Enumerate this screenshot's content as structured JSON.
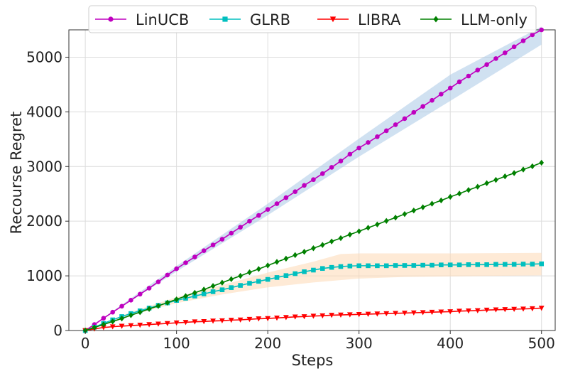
{
  "chart_data": {
    "type": "line",
    "title": "",
    "xlabel": "Steps",
    "ylabel": "Recourse Regret",
    "xlim": [
      -18,
      515
    ],
    "ylim": [
      0,
      5500
    ],
    "xticks": [
      0,
      100,
      200,
      300,
      400,
      500
    ],
    "yticks": [
      0,
      1000,
      2000,
      3000,
      4000,
      5000
    ],
    "grid": true,
    "legend_position": "top-center",
    "legend_columns": 4,
    "series": [
      {
        "name": "LinUCB",
        "color": "#bf00bf",
        "marker": "circle",
        "points": [
          [
            0,
            0
          ],
          [
            10,
            110
          ],
          [
            20,
            225
          ],
          [
            30,
            335
          ],
          [
            40,
            445
          ],
          [
            50,
            555
          ],
          [
            60,
            665
          ],
          [
            70,
            775
          ],
          [
            80,
            890
          ],
          [
            90,
            1015
          ],
          [
            100,
            1130
          ],
          [
            110,
            1240
          ],
          [
            120,
            1345
          ],
          [
            130,
            1460
          ],
          [
            140,
            1565
          ],
          [
            150,
            1670
          ],
          [
            160,
            1780
          ],
          [
            170,
            1890
          ],
          [
            180,
            2000
          ],
          [
            190,
            2105
          ],
          [
            200,
            2215
          ],
          [
            210,
            2320
          ],
          [
            220,
            2430
          ],
          [
            230,
            2540
          ],
          [
            240,
            2655
          ],
          [
            250,
            2760
          ],
          [
            260,
            2870
          ],
          [
            270,
            2985
          ],
          [
            280,
            3100
          ],
          [
            290,
            3225
          ],
          [
            300,
            3340
          ],
          [
            310,
            3440
          ],
          [
            320,
            3545
          ],
          [
            330,
            3655
          ],
          [
            340,
            3765
          ],
          [
            350,
            3875
          ],
          [
            360,
            3990
          ],
          [
            370,
            4100
          ],
          [
            380,
            4210
          ],
          [
            390,
            4325
          ],
          [
            400,
            4435
          ],
          [
            410,
            4550
          ],
          [
            420,
            4655
          ],
          [
            430,
            4765
          ],
          [
            440,
            4865
          ],
          [
            450,
            4975
          ],
          [
            460,
            5080
          ],
          [
            470,
            5190
          ],
          [
            480,
            5300
          ],
          [
            490,
            5410
          ],
          [
            500,
            5500
          ]
        ],
        "band": {
          "color": "#a9c9e6",
          "lower": [
            [
              0,
              0
            ],
            [
              100,
              1080
            ],
            [
              200,
              2110
            ],
            [
              300,
              3180
            ],
            [
              400,
              4200
            ],
            [
              500,
              5230
            ]
          ],
          "upper": [
            [
              0,
              0
            ],
            [
              100,
              1180
            ],
            [
              200,
              2320
            ],
            [
              300,
              3510
            ],
            [
              400,
              4680
            ],
            [
              500,
              5560
            ]
          ]
        }
      },
      {
        "name": "GLRB",
        "color": "#00bfbf",
        "marker": "square",
        "points": [
          [
            0,
            0
          ],
          [
            10,
            60
          ],
          [
            20,
            130
          ],
          [
            30,
            195
          ],
          [
            40,
            255
          ],
          [
            50,
            310
          ],
          [
            60,
            360
          ],
          [
            70,
            410
          ],
          [
            80,
            460
          ],
          [
            90,
            505
          ],
          [
            100,
            550
          ],
          [
            110,
            590
          ],
          [
            120,
            630
          ],
          [
            130,
            670
          ],
          [
            140,
            710
          ],
          [
            150,
            745
          ],
          [
            160,
            785
          ],
          [
            170,
            825
          ],
          [
            180,
            865
          ],
          [
            190,
            900
          ],
          [
            200,
            935
          ],
          [
            210,
            970
          ],
          [
            220,
            1005
          ],
          [
            230,
            1040
          ],
          [
            240,
            1075
          ],
          [
            250,
            1105
          ],
          [
            260,
            1135
          ],
          [
            270,
            1155
          ],
          [
            280,
            1170
          ],
          [
            290,
            1180
          ],
          [
            300,
            1185
          ],
          [
            310,
            1185
          ],
          [
            320,
            1185
          ],
          [
            330,
            1185
          ],
          [
            340,
            1190
          ],
          [
            350,
            1190
          ],
          [
            360,
            1190
          ],
          [
            370,
            1195
          ],
          [
            380,
            1195
          ],
          [
            390,
            1200
          ],
          [
            400,
            1200
          ],
          [
            410,
            1200
          ],
          [
            420,
            1205
          ],
          [
            430,
            1205
          ],
          [
            440,
            1205
          ],
          [
            450,
            1210
          ],
          [
            460,
            1210
          ],
          [
            470,
            1210
          ],
          [
            480,
            1215
          ],
          [
            490,
            1215
          ],
          [
            500,
            1220
          ]
        ],
        "band": {
          "color": "#fdd9b5",
          "lower": [
            [
              0,
              0
            ],
            [
              50,
              280
            ],
            [
              100,
              500
            ],
            [
              150,
              660
            ],
            [
              200,
              790
            ],
            [
              250,
              880
            ],
            [
              300,
              950
            ],
            [
              350,
              980
            ],
            [
              400,
              990
            ],
            [
              450,
              1000
            ],
            [
              500,
              1010
            ]
          ],
          "upper": [
            [
              0,
              0
            ],
            [
              50,
              340
            ],
            [
              100,
              610
            ],
            [
              150,
              830
            ],
            [
              200,
              1060
            ],
            [
              250,
              1260
            ],
            [
              280,
              1400
            ],
            [
              300,
              1410
            ],
            [
              400,
              1410
            ],
            [
              500,
              1420
            ]
          ]
        }
      },
      {
        "name": "LIBRA",
        "color": "#ff0000",
        "marker": "triangle-down",
        "points": [
          [
            0,
            0
          ],
          [
            10,
            30
          ],
          [
            20,
            55
          ],
          [
            30,
            70
          ],
          [
            40,
            80
          ],
          [
            50,
            90
          ],
          [
            60,
            100
          ],
          [
            70,
            110
          ],
          [
            80,
            120
          ],
          [
            90,
            130
          ],
          [
            100,
            140
          ],
          [
            110,
            150
          ],
          [
            120,
            160
          ],
          [
            130,
            165
          ],
          [
            140,
            175
          ],
          [
            150,
            180
          ],
          [
            160,
            190
          ],
          [
            170,
            195
          ],
          [
            180,
            205
          ],
          [
            190,
            215
          ],
          [
            200,
            220
          ],
          [
            210,
            230
          ],
          [
            220,
            240
          ],
          [
            230,
            250
          ],
          [
            240,
            255
          ],
          [
            250,
            265
          ],
          [
            260,
            270
          ],
          [
            270,
            280
          ],
          [
            280,
            285
          ],
          [
            290,
            290
          ],
          [
            300,
            295
          ],
          [
            310,
            300
          ],
          [
            320,
            305
          ],
          [
            330,
            310
          ],
          [
            340,
            315
          ],
          [
            350,
            320
          ],
          [
            360,
            325
          ],
          [
            370,
            330
          ],
          [
            380,
            335
          ],
          [
            390,
            340
          ],
          [
            400,
            345
          ],
          [
            410,
            355
          ],
          [
            420,
            360
          ],
          [
            430,
            365
          ],
          [
            440,
            375
          ],
          [
            450,
            380
          ],
          [
            460,
            385
          ],
          [
            470,
            390
          ],
          [
            480,
            395
          ],
          [
            490,
            400
          ],
          [
            500,
            410
          ]
        ]
      },
      {
        "name": "LLM-only",
        "color": "#008000",
        "marker": "diamond",
        "points": [
          [
            0,
            0
          ],
          [
            10,
            55
          ],
          [
            20,
            110
          ],
          [
            30,
            165
          ],
          [
            40,
            220
          ],
          [
            50,
            280
          ],
          [
            60,
            335
          ],
          [
            70,
            395
          ],
          [
            80,
            450
          ],
          [
            90,
            510
          ],
          [
            100,
            570
          ],
          [
            110,
            630
          ],
          [
            120,
            690
          ],
          [
            130,
            750
          ],
          [
            140,
            815
          ],
          [
            150,
            875
          ],
          [
            160,
            940
          ],
          [
            170,
            1000
          ],
          [
            180,
            1065
          ],
          [
            190,
            1125
          ],
          [
            200,
            1190
          ],
          [
            210,
            1255
          ],
          [
            220,
            1315
          ],
          [
            230,
            1380
          ],
          [
            240,
            1440
          ],
          [
            250,
            1505
          ],
          [
            260,
            1565
          ],
          [
            270,
            1630
          ],
          [
            280,
            1690
          ],
          [
            290,
            1755
          ],
          [
            300,
            1815
          ],
          [
            310,
            1880
          ],
          [
            320,
            1940
          ],
          [
            330,
            2005
          ],
          [
            340,
            2065
          ],
          [
            350,
            2130
          ],
          [
            360,
            2195
          ],
          [
            370,
            2255
          ],
          [
            380,
            2320
          ],
          [
            390,
            2380
          ],
          [
            400,
            2445
          ],
          [
            410,
            2505
          ],
          [
            420,
            2570
          ],
          [
            430,
            2630
          ],
          [
            440,
            2695
          ],
          [
            450,
            2755
          ],
          [
            460,
            2820
          ],
          [
            470,
            2880
          ],
          [
            480,
            2945
          ],
          [
            490,
            3005
          ],
          [
            500,
            3070
          ]
        ]
      }
    ]
  }
}
